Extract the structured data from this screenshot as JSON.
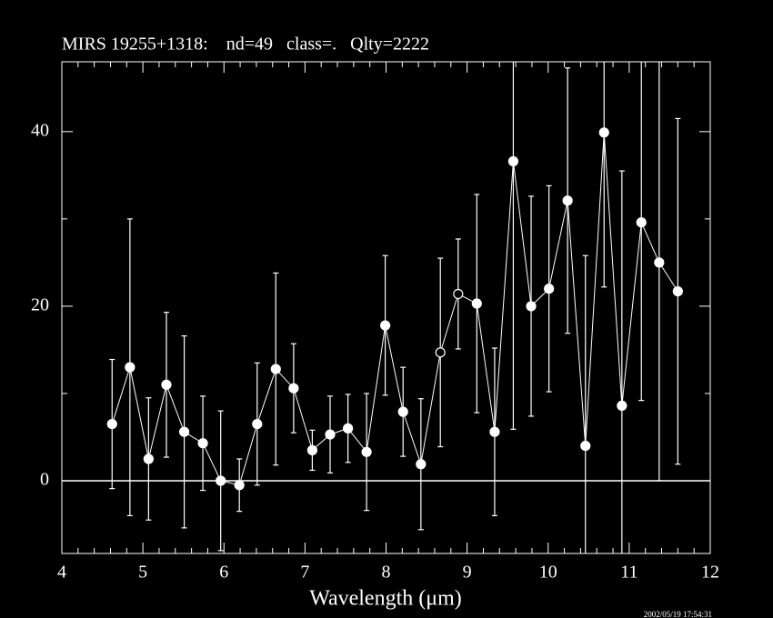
{
  "chart_data": {
    "type": "errorbar",
    "title": "MIRS 19255+1318:    nd=49   class=.   Qlty=2222",
    "x_label": "Wavelength (μm)",
    "timestamp": "2002/05/19 17:54:31",
    "xlim": [
      4,
      12
    ],
    "ylim": [
      -8.33,
      48
    ],
    "xticks": [
      4,
      5,
      6,
      7,
      8,
      9,
      10,
      11,
      12
    ],
    "xminorticks": [
      4.2,
      4.4,
      4.6,
      4.8,
      5.2,
      5.4,
      5.6,
      5.8,
      6.2,
      6.4,
      6.6,
      6.8,
      7.2,
      7.4,
      7.6,
      7.8,
      8.2,
      8.4,
      8.6,
      8.8,
      9.2,
      9.4,
      9.6,
      9.8,
      10.2,
      10.4,
      10.6,
      10.8,
      11.2,
      11.4,
      11.6,
      11.8
    ],
    "yticks": [
      0,
      20,
      40
    ],
    "yminorticks": [
      10,
      30
    ],
    "hline": 0,
    "color": "#ffffff",
    "series": [
      {
        "x": [
          4.62,
          4.84,
          5.07,
          5.29,
          5.51,
          5.74,
          5.96,
          6.19,
          6.41,
          6.64,
          6.86,
          7.09,
          7.31,
          7.53,
          7.76,
          7.99,
          8.21,
          8.43,
          8.67,
          8.89,
          9.12,
          9.34,
          9.57,
          9.79,
          10.01,
          10.24,
          10.46,
          10.69,
          10.91,
          11.15,
          11.37,
          11.6
        ],
        "values": [
          6.5,
          13.0,
          2.5,
          11.0,
          5.6,
          4.3,
          0,
          -0.5,
          6.5,
          12.8,
          10.6,
          3.5,
          5.3,
          6.0,
          3.3,
          17.8,
          7.9,
          1.9,
          14.7,
          21.4,
          20.3,
          5.6,
          36.6,
          20.0,
          22.0,
          32.1,
          4.0,
          39.9,
          8.6,
          29.6,
          25.0,
          21.7
        ],
        "errors": [
          7.4,
          17.0,
          7.0,
          8.3,
          11.0,
          5.4,
          8.0,
          3.0,
          7.0,
          11.0,
          5.1,
          2.3,
          4.4,
          3.9,
          6.7,
          8.0,
          5.1,
          7.5,
          10.8,
          6.3,
          12.5,
          9.6,
          30.7,
          12.6,
          11.8,
          15.2,
          21.8,
          17.7,
          26.9,
          20.4,
          25.0,
          19.8
        ],
        "filled": [
          true,
          true,
          true,
          true,
          true,
          true,
          true,
          true,
          true,
          true,
          true,
          true,
          true,
          true,
          true,
          true,
          true,
          true,
          false,
          false,
          true,
          true,
          true,
          true,
          true,
          true,
          true,
          true,
          true,
          true,
          true,
          true
        ]
      }
    ]
  }
}
